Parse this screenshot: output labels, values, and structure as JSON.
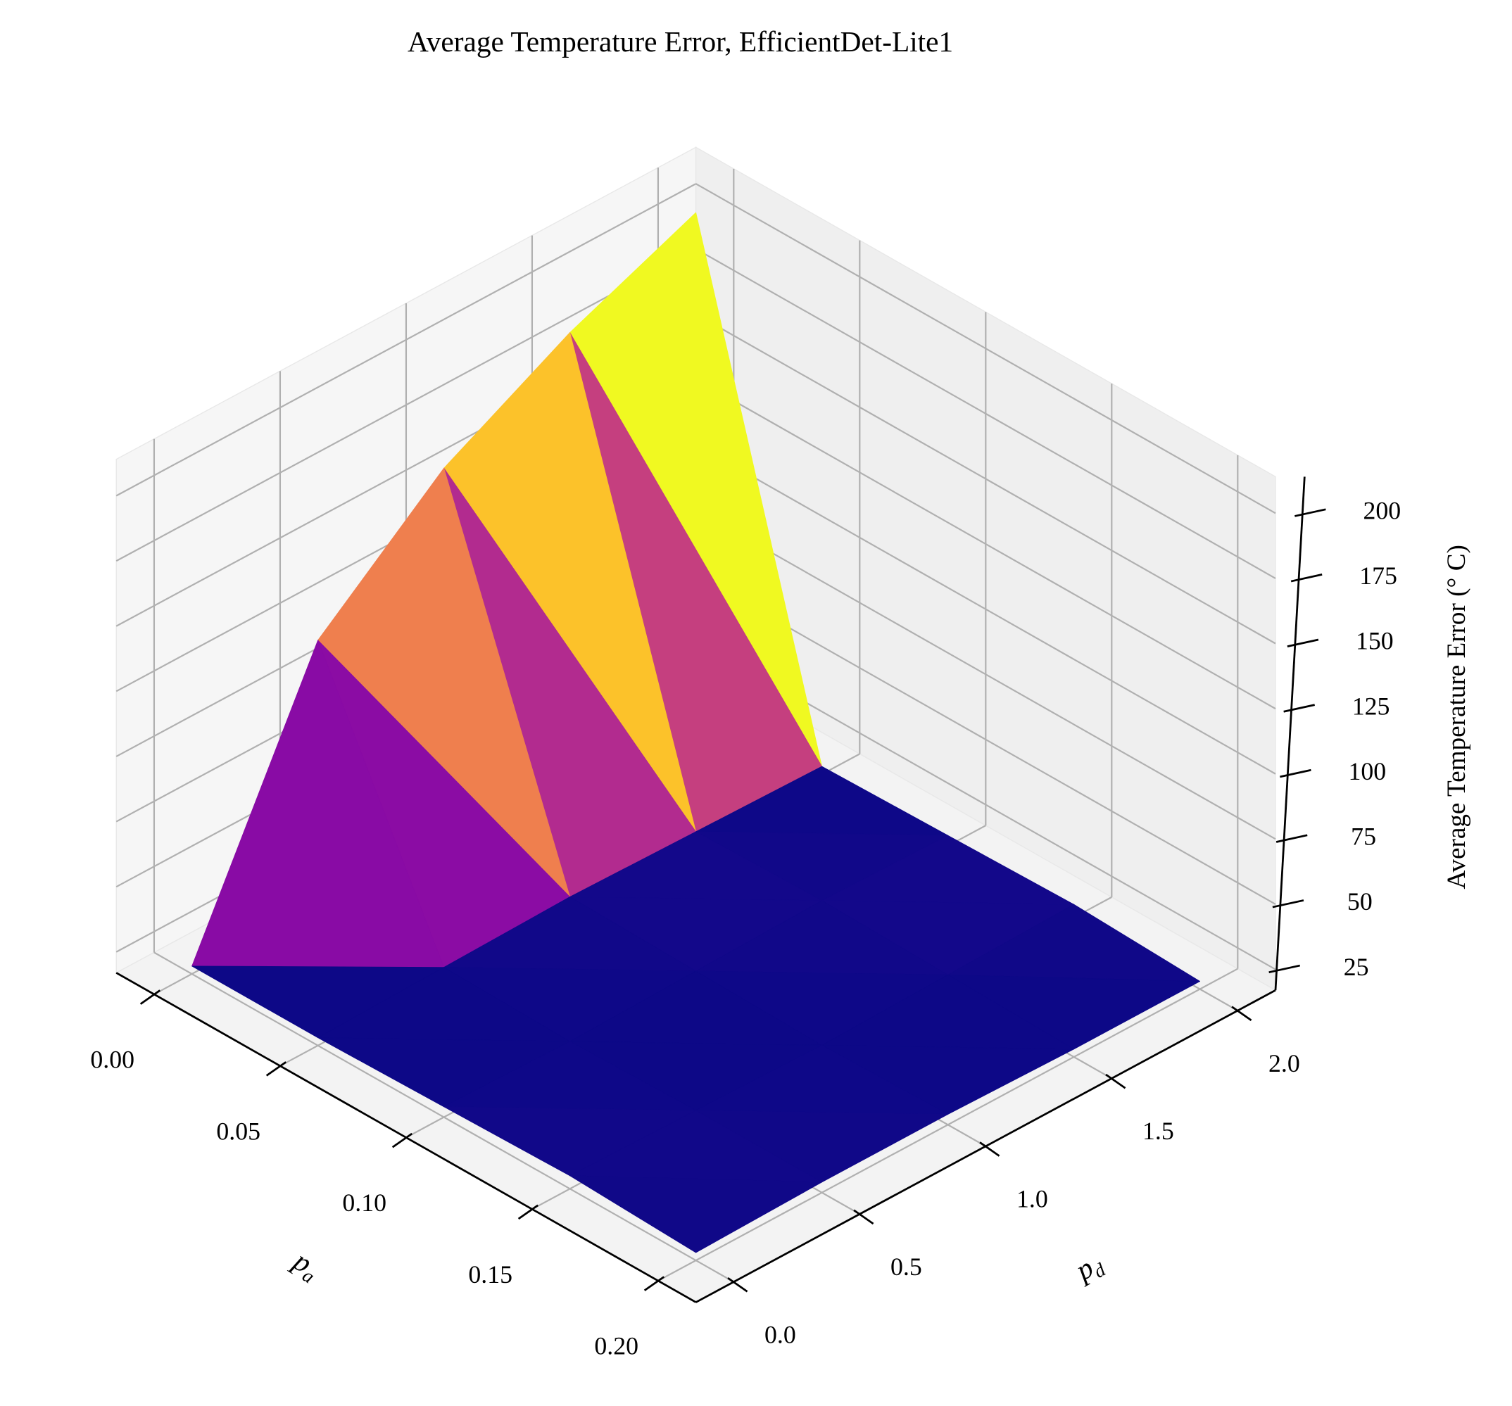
{
  "chart_data": {
    "type": "surface",
    "title": "Average Temperature Error, EfficientDet-Lite1",
    "x": [
      0,
      0.05,
      0.1,
      0.15,
      0.2
    ],
    "y": [
      0,
      0.5,
      1,
      1.5,
      2
    ],
    "z": [
      [
        20,
        119,
        159,
        185,
        205
      ],
      [
        20,
        21,
        22,
        21,
        20
      ],
      [
        21,
        20,
        21,
        22,
        21
      ],
      [
        22,
        21,
        20,
        21,
        22
      ],
      [
        20,
        21,
        21,
        20,
        20
      ]
    ],
    "xlabel": {
      "base": "p",
      "subscript": "a"
    },
    "ylabel": {
      "base": "p",
      "subscript": "d"
    },
    "zlabel": "Average Temperature Error (° C)",
    "xlim": [
      -0.015,
      0.215
    ],
    "ylim": [
      -0.15,
      2.15
    ],
    "zlim": [
      17,
      214
    ],
    "xticks": [
      {
        "value": 0,
        "label": "0.00"
      },
      0.05,
      {
        "value": 0.1,
        "label": "0.10"
      },
      0.15,
      {
        "value": 0.2,
        "label": "0.20"
      }
    ],
    "yticks": [
      {
        "value": 0,
        "label": "0.0"
      },
      0.5,
      {
        "value": 1,
        "label": "1.0"
      },
      1.5,
      {
        "value": 2,
        "label": "2.0"
      }
    ],
    "zticks": [
      25,
      50,
      75,
      100,
      125,
      150,
      175,
      200
    ],
    "colormap": "plasma",
    "grid": true
  }
}
